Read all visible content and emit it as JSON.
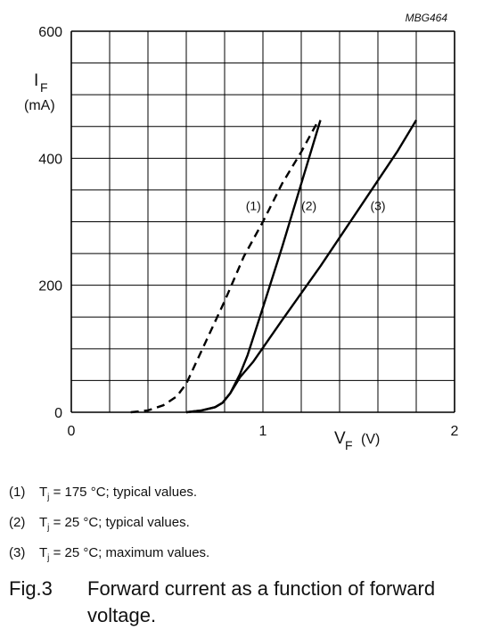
{
  "chart_data": {
    "type": "line",
    "code": "MBG464",
    "ylabel_main": "I",
    "ylabel_sub": "F",
    "yunit": "(mA)",
    "xlabel_main": "V",
    "xlabel_sub": "F",
    "xunit": "(V)",
    "xlim": [
      0,
      2
    ],
    "ylim": [
      0,
      600
    ],
    "x_ticks": [
      "0",
      "1",
      "2"
    ],
    "y_ticks": [
      "0",
      "200",
      "400",
      "600"
    ],
    "grid": true,
    "series": [
      {
        "name": "(1)",
        "style": "dashed",
        "label_at": [
          0.95,
          325
        ],
        "points": [
          [
            0.31,
            0
          ],
          [
            0.4,
            3
          ],
          [
            0.48,
            11
          ],
          [
            0.55,
            25
          ],
          [
            0.6,
            45
          ],
          [
            0.7,
            110
          ],
          [
            0.8,
            175
          ],
          [
            0.9,
            245
          ],
          [
            1.0,
            300
          ],
          [
            1.1,
            360
          ],
          [
            1.2,
            410
          ],
          [
            1.29,
            460
          ]
        ]
      },
      {
        "name": "(2)",
        "style": "solid",
        "label_at": [
          1.24,
          325
        ],
        "points": [
          [
            0.6,
            0
          ],
          [
            0.68,
            3
          ],
          [
            0.75,
            8
          ],
          [
            0.79,
            15
          ],
          [
            0.83,
            30
          ],
          [
            0.88,
            60
          ],
          [
            0.92,
            90
          ],
          [
            1.0,
            165
          ],
          [
            1.1,
            260
          ],
          [
            1.2,
            360
          ],
          [
            1.3,
            460
          ]
        ]
      },
      {
        "name": "(3)",
        "style": "solid",
        "label_at": [
          1.6,
          325
        ],
        "points": [
          [
            0.6,
            0
          ],
          [
            0.68,
            3
          ],
          [
            0.75,
            8
          ],
          [
            0.79,
            15
          ],
          [
            0.83,
            30
          ],
          [
            0.88,
            55
          ],
          [
            0.95,
            80
          ],
          [
            1.1,
            145
          ],
          [
            1.3,
            230
          ],
          [
            1.5,
            320
          ],
          [
            1.7,
            410
          ],
          [
            1.8,
            460
          ]
        ]
      }
    ]
  },
  "legend": [
    {
      "num": "(1)",
      "pre": "T",
      "sub": "j",
      "post": " = 175 °C; typical values."
    },
    {
      "num": "(2)",
      "pre": "T",
      "sub": "j",
      "post": " = 25 °C; typical values."
    },
    {
      "num": "(3)",
      "pre": "T",
      "sub": "j",
      "post": " = 25 °C; maximum values."
    }
  ],
  "caption": {
    "fig": "Fig.3",
    "text": "Forward current as a function of forward voltage."
  }
}
